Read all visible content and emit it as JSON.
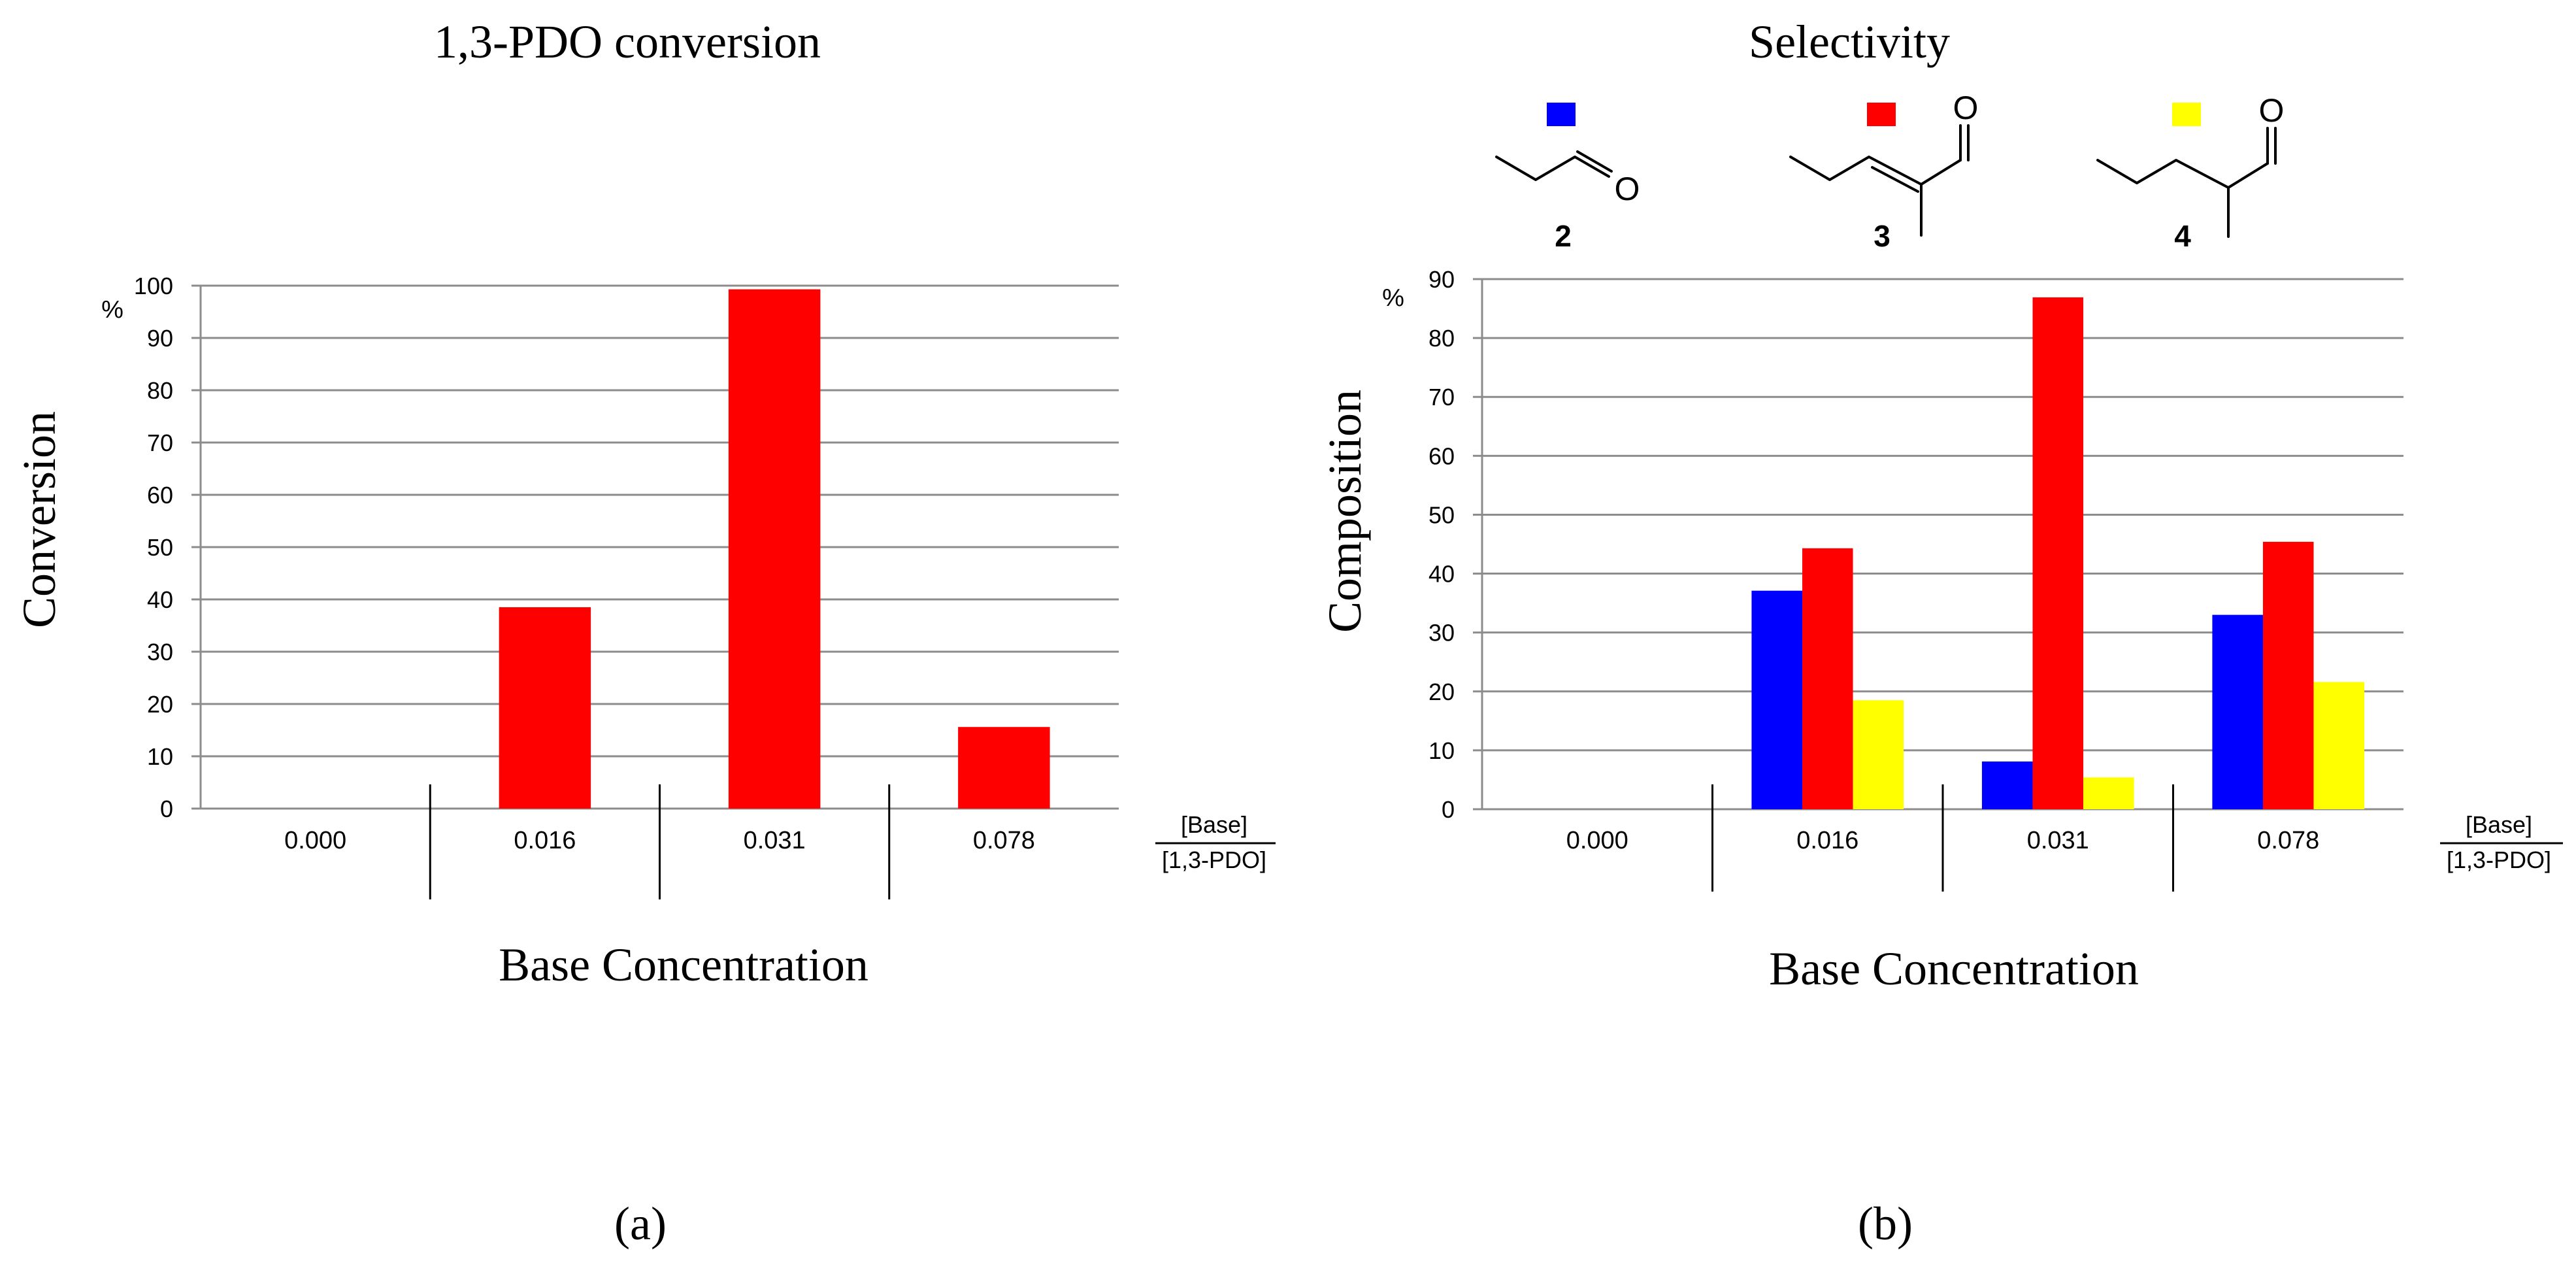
{
  "chart_data": [
    {
      "type": "bar",
      "panel": "(a)",
      "title": "1,3-PDO conversion",
      "ylabel": "Conversion",
      "yunit": "%",
      "xlabel": "Base Concentration",
      "x_ratio": {
        "numerator": "[Base]",
        "denominator": "[1,3-PDO]"
      },
      "ylim": [
        0,
        100
      ],
      "yticks": [
        0,
        10,
        20,
        30,
        40,
        50,
        60,
        70,
        80,
        90,
        100
      ],
      "grid": true,
      "categories": [
        "0.000",
        "0.016",
        "0.031",
        "0.078"
      ],
      "series": [
        {
          "name": "Conversion",
          "color": "#ff0000",
          "values": [
            0,
            38.5,
            99.3,
            15.6
          ]
        }
      ]
    },
    {
      "type": "bar",
      "panel": "(b)",
      "title": "Selectivity",
      "ylabel": "Composition",
      "yunit": "%",
      "xlabel": "Base Concentration",
      "x_ratio": {
        "numerator": "[Base]",
        "denominator": "[1,3-PDO]"
      },
      "ylim": [
        0,
        90
      ],
      "yticks": [
        0,
        10,
        20,
        30,
        40,
        50,
        60,
        70,
        80,
        90
      ],
      "grid": true,
      "categories": [
        "0.000",
        "0.016",
        "0.031",
        "0.078"
      ],
      "series": [
        {
          "name": "2",
          "color": "#0000ff",
          "values": [
            0,
            37.1,
            8.1,
            33.0
          ]
        },
        {
          "name": "3",
          "color": "#ff0000",
          "values": [
            0,
            44.3,
            86.9,
            45.4
          ]
        },
        {
          "name": "4",
          "color": "#ffff00",
          "values": [
            0,
            18.5,
            5.4,
            21.6
          ]
        }
      ],
      "legend": [
        "2",
        "3",
        "4"
      ],
      "atom_label": "O"
    }
  ]
}
